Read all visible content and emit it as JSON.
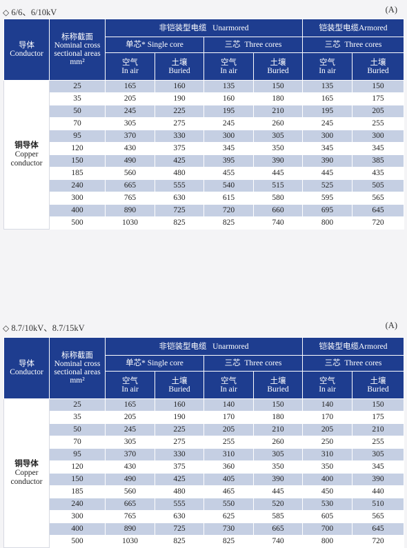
{
  "sections": [
    {
      "voltage_title": "6/6、6/10kV",
      "unit": "(A)",
      "header": {
        "conductor_zh": "导体",
        "conductor_en": "Conductor",
        "area_zh": "标称截面",
        "area_en": "Nominal cross sectional areas",
        "area_unit": "mm²",
        "unarmored_zh": "非铠装型电缆",
        "unarmored_en": "Unarmored",
        "armored_zh": "铠装型电缆",
        "armored_en": "Armored",
        "single_core_zh": "单芯*",
        "single_core_en": "Single core",
        "three_cores_zh": "三芯",
        "three_cores_en": "Three cores",
        "in_air_zh": "空气",
        "in_air_en": "In air",
        "buried_zh": "土壤",
        "buried_en": "Buried"
      },
      "conductor_label_zh": "铜导体",
      "conductor_label_en": "Copper conductor",
      "rows": [
        [
          "25",
          "165",
          "160",
          "135",
          "150",
          "135",
          "150"
        ],
        [
          "35",
          "205",
          "190",
          "160",
          "180",
          "165",
          "175"
        ],
        [
          "50",
          "245",
          "225",
          "195",
          "210",
          "195",
          "205"
        ],
        [
          "70",
          "305",
          "275",
          "245",
          "260",
          "245",
          "255"
        ],
        [
          "95",
          "370",
          "330",
          "300",
          "305",
          "300",
          "300"
        ],
        [
          "120",
          "430",
          "375",
          "345",
          "350",
          "345",
          "345"
        ],
        [
          "150",
          "490",
          "425",
          "395",
          "390",
          "390",
          "385"
        ],
        [
          "185",
          "560",
          "480",
          "455",
          "445",
          "445",
          "435"
        ],
        [
          "240",
          "665",
          "555",
          "540",
          "515",
          "525",
          "505"
        ],
        [
          "300",
          "765",
          "630",
          "615",
          "580",
          "595",
          "565"
        ],
        [
          "400",
          "890",
          "725",
          "720",
          "660",
          "695",
          "645"
        ],
        [
          "500",
          "1030",
          "825",
          "825",
          "740",
          "800",
          "720"
        ]
      ]
    },
    {
      "voltage_title": "8.7/10kV、8.7/15kV",
      "unit": "(A)",
      "header": {
        "conductor_zh": "导体",
        "conductor_en": "Conductor",
        "area_zh": "标称截面",
        "area_en": "Nominal cross sectional areas",
        "area_unit": "mm²",
        "unarmored_zh": "非铠装型电缆",
        "unarmored_en": "Unarmored",
        "armored_zh": "铠装型电缆",
        "armored_en": "Armored",
        "single_core_zh": "单芯*",
        "single_core_en": "Single core",
        "three_cores_zh": "三芯",
        "three_cores_en": "Three cores",
        "in_air_zh": "空气",
        "in_air_en": "In air",
        "buried_zh": "土壤",
        "buried_en": "Buried"
      },
      "conductor_label_zh": "铜导体",
      "conductor_label_en": "Copper conductor",
      "rows": [
        [
          "25",
          "165",
          "160",
          "140",
          "150",
          "140",
          "150"
        ],
        [
          "35",
          "205",
          "190",
          "170",
          "180",
          "170",
          "175"
        ],
        [
          "50",
          "245",
          "225",
          "205",
          "210",
          "205",
          "210"
        ],
        [
          "70",
          "305",
          "275",
          "255",
          "260",
          "250",
          "255"
        ],
        [
          "95",
          "370",
          "330",
          "310",
          "305",
          "310",
          "305"
        ],
        [
          "120",
          "430",
          "375",
          "360",
          "350",
          "350",
          "345"
        ],
        [
          "150",
          "490",
          "425",
          "405",
          "390",
          "400",
          "390"
        ],
        [
          "185",
          "560",
          "480",
          "465",
          "445",
          "450",
          "440"
        ],
        [
          "240",
          "665",
          "555",
          "550",
          "520",
          "530",
          "510"
        ],
        [
          "300",
          "765",
          "630",
          "625",
          "585",
          "605",
          "565"
        ],
        [
          "400",
          "890",
          "725",
          "730",
          "665",
          "700",
          "645"
        ],
        [
          "500",
          "1030",
          "825",
          "825",
          "740",
          "800",
          "720"
        ]
      ]
    }
  ]
}
